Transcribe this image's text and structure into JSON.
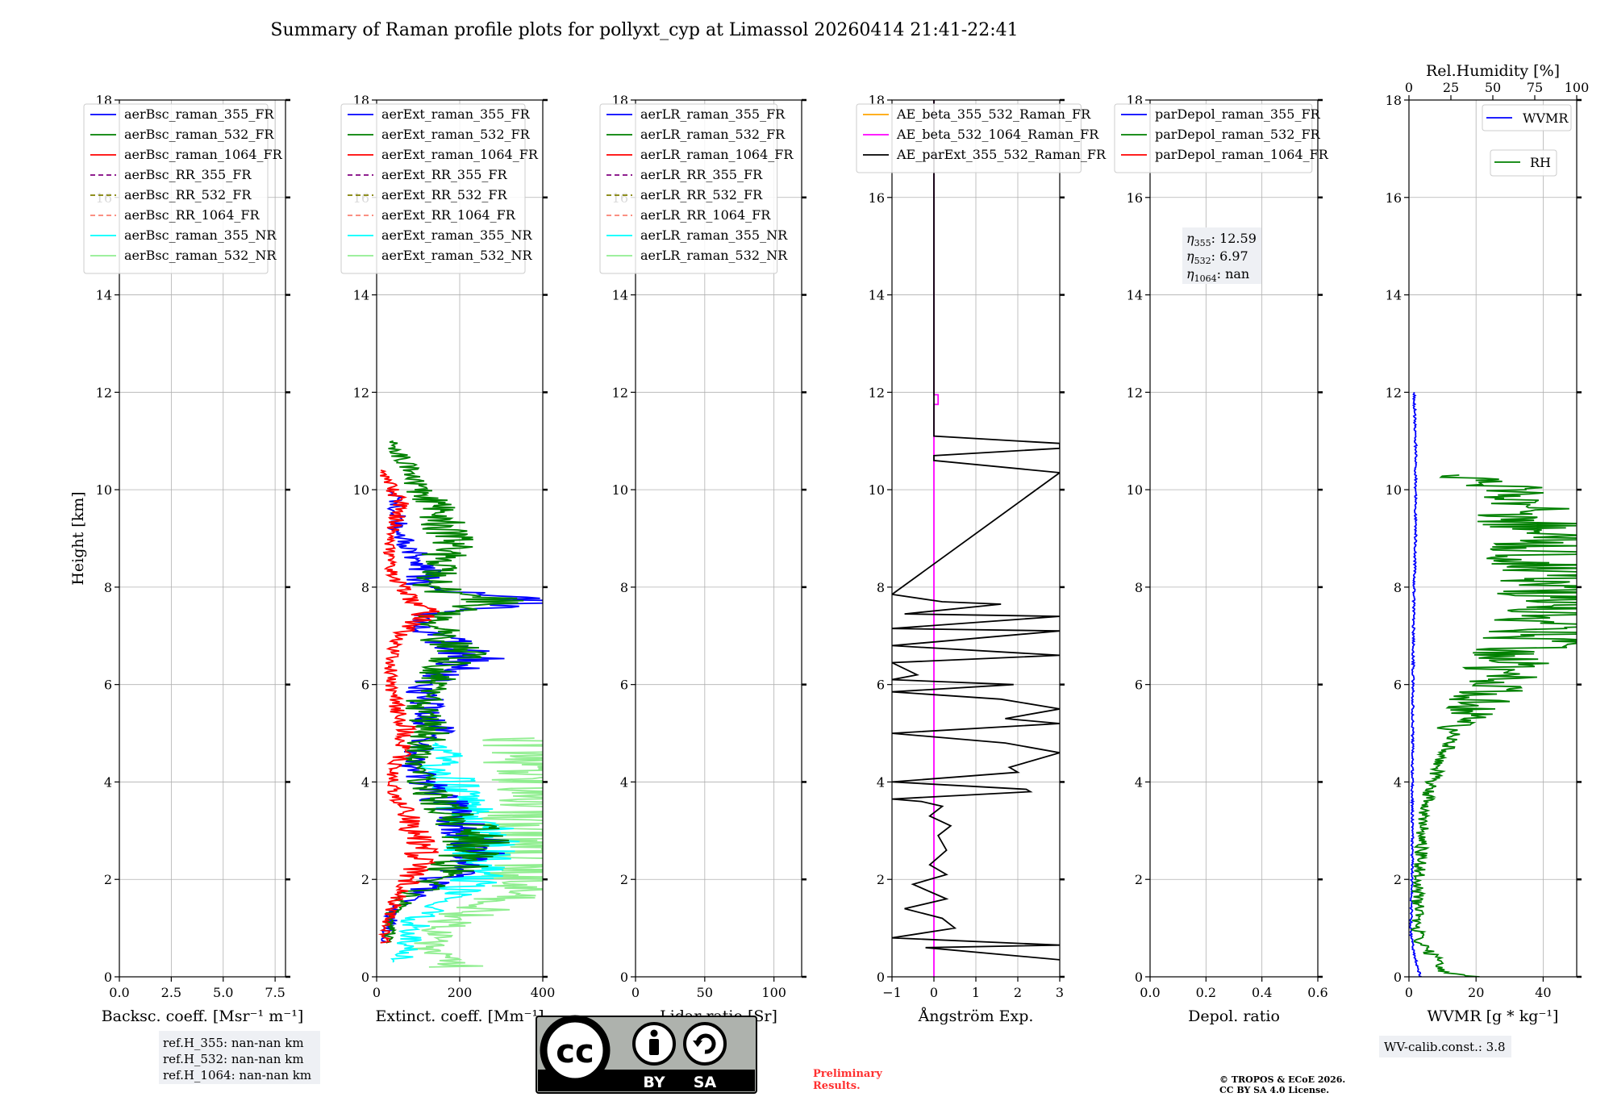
{
  "figure": {
    "title": "Summary of Raman profile plots for pollyxt_cyp at Limassol 20260414 21:41-22:41",
    "preliminary": "Preliminary\nResults.",
    "copyright": "© TROPOS & ECoE 2026.\nCC BY SA 4.0 License.",
    "license_badge": {
      "by": "BY",
      "sa": "SA"
    },
    "ref_heights": [
      "ref.H_355: nan-nan km",
      "ref.H_532: nan-nan km",
      "ref.H_1064: nan-nan km"
    ],
    "wv_calib": "WV-calib.const.: 3.8",
    "colors": {
      "c355": "#0000ff",
      "c532": "#008000",
      "c1064": "#ff0000",
      "purple": "#800080",
      "olive": "#808000",
      "salmon": "#fa8072",
      "cyan": "#00ffff",
      "lightgreen": "#90ee90",
      "orange": "#ffa500",
      "magenta": "#ff00ff",
      "black": "#000000"
    }
  },
  "chart_data": [
    {
      "type": "line",
      "id": "bsc",
      "xlabel": "Backsc. coeff. [Msr⁻¹ m⁻¹]",
      "ylabel": "Height [km]",
      "xlim": [
        0,
        8
      ],
      "ylim": [
        0,
        18
      ],
      "xticks": [
        0,
        2.5,
        5,
        7.5
      ],
      "xticklabels": [
        "0.0",
        "2.5",
        "5.0",
        "7.5"
      ],
      "yticks": [
        0,
        2,
        4,
        6,
        8,
        10,
        12,
        14,
        16,
        18
      ],
      "legend": {
        "placement": "upper-left",
        "entries": [
          {
            "label": "aerBsc_raman_355_FR",
            "color": "#0000ff",
            "dash": false
          },
          {
            "label": "aerBsc_raman_532_FR",
            "color": "#008000",
            "dash": false
          },
          {
            "label": "aerBsc_raman_1064_FR",
            "color": "#ff0000",
            "dash": false
          },
          {
            "label": "aerBsc_RR_355_FR",
            "color": "#800080",
            "dash": true
          },
          {
            "label": "aerBsc_RR_532_FR",
            "color": "#808000",
            "dash": true
          },
          {
            "label": "aerBsc_RR_1064_FR",
            "color": "#fa8072",
            "dash": true
          },
          {
            "label": "aerBsc_raman_355_NR",
            "color": "#00ffff",
            "dash": false
          },
          {
            "label": "aerBsc_raman_532_NR",
            "color": "#90ee90",
            "dash": false
          }
        ]
      },
      "series": []
    },
    {
      "type": "line",
      "id": "ext",
      "xlabel": "Extinct. coeff. [Mm⁻¹]",
      "xlim": [
        0,
        400
      ],
      "ylim": [
        0,
        18
      ],
      "xticks": [
        0,
        200,
        400
      ],
      "xticklabels": [
        "0",
        "200",
        "400"
      ],
      "yticks": [
        0,
        2,
        4,
        6,
        8,
        10,
        12,
        14,
        16,
        18
      ],
      "legend": {
        "placement": "upper-left",
        "entries": [
          {
            "label": "aerExt_raman_355_FR",
            "color": "#0000ff",
            "dash": false
          },
          {
            "label": "aerExt_raman_532_FR",
            "color": "#008000",
            "dash": false
          },
          {
            "label": "aerExt_raman_1064_FR",
            "color": "#ff0000",
            "dash": false
          },
          {
            "label": "aerExt_RR_355_FR",
            "color": "#800080",
            "dash": true
          },
          {
            "label": "aerExt_RR_532_FR",
            "color": "#808000",
            "dash": true
          },
          {
            "label": "aerExt_RR_1064_FR",
            "color": "#fa8072",
            "dash": true
          },
          {
            "label": "aerExt_raman_355_NR",
            "color": "#00ffff",
            "dash": false
          },
          {
            "label": "aerExt_raman_532_NR",
            "color": "#90ee90",
            "dash": false
          }
        ]
      },
      "series": [
        {
          "name": "aerExt_raman_532_NR",
          "color": "#90ee90",
          "noisy": true,
          "y": [
            0.2,
            0.6,
            1.0,
            1.4,
            1.8,
            2.2,
            2.6,
            3.0,
            3.4,
            3.8,
            4.2,
            4.6,
            4.9
          ],
          "x": [
            200,
            120,
            150,
            250,
            330,
            380,
            400,
            380,
            360,
            370,
            380,
            400,
            380
          ]
        },
        {
          "name": "aerExt_raman_355_NR",
          "color": "#00ffff",
          "noisy": true,
          "y": [
            0.3,
            0.8,
            1.2,
            1.6,
            2.0,
            2.4,
            2.8,
            3.2,
            3.6,
            4.0,
            4.4,
            4.8
          ],
          "x": [
            60,
            80,
            100,
            150,
            230,
            250,
            260,
            240,
            200,
            180,
            160,
            140
          ]
        },
        {
          "name": "aerExt_raman_355_FR",
          "color": "#0000ff",
          "noisy": true,
          "y": [
            0.7,
            1.0,
            1.4,
            1.8,
            2.2,
            2.6,
            2.8,
            3.2,
            3.6,
            4.0,
            4.4,
            5.0,
            5.6,
            6.0,
            6.6,
            7.0,
            7.4,
            7.7,
            8.0,
            8.5,
            9.0,
            9.5,
            10.0
          ],
          "x": [
            20,
            30,
            40,
            110,
            200,
            240,
            250,
            200,
            160,
            120,
            80,
            140,
            120,
            110,
            240,
            150,
            100,
            350,
            110,
            120,
            60,
            50,
            40
          ]
        },
        {
          "name": "aerExt_raman_532_FR",
          "color": "#008000",
          "noisy": true,
          "y": [
            0.7,
            1.0,
            1.4,
            1.8,
            2.2,
            2.6,
            2.8,
            3.2,
            3.6,
            4.0,
            4.4,
            5.0,
            5.6,
            6.0,
            6.6,
            7.0,
            7.4,
            7.7,
            8.0,
            8.5,
            9.0,
            9.5,
            10.0,
            11.0
          ],
          "x": [
            25,
            35,
            45,
            110,
            190,
            240,
            245,
            205,
            150,
            110,
            90,
            130,
            110,
            130,
            200,
            150,
            140,
            300,
            130,
            150,
            180,
            160,
            100,
            40
          ]
        },
        {
          "name": "aerExt_raman_1064_FR",
          "color": "#ff0000",
          "noisy": true,
          "y": [
            0.7,
            1.0,
            1.4,
            1.6,
            1.9,
            2.3,
            2.6,
            3.0,
            3.4,
            3.8,
            4.2,
            4.6,
            5.0,
            5.6,
            6.0,
            6.6,
            7.0,
            7.5,
            7.8,
            8.2,
            8.6,
            9.0,
            9.6,
            10.0,
            10.4
          ],
          "x": [
            20,
            20,
            40,
            50,
            70,
            100,
            110,
            90,
            80,
            40,
            40,
            60,
            70,
            50,
            30,
            40,
            50,
            120,
            80,
            40,
            30,
            30,
            60,
            40,
            10
          ]
        }
      ]
    },
    {
      "type": "line",
      "id": "lr",
      "xlabel": "Lidar ratio [Sr]",
      "xlim": [
        0,
        120
      ],
      "ylim": [
        0,
        18
      ],
      "xticks": [
        0,
        50,
        100
      ],
      "xticklabels": [
        "0",
        "50",
        "100"
      ],
      "yticks": [
        0,
        2,
        4,
        6,
        8,
        10,
        12,
        14,
        16,
        18
      ],
      "legend": {
        "placement": "upper-left",
        "entries": [
          {
            "label": "aerLR_raman_355_FR",
            "color": "#0000ff",
            "dash": false
          },
          {
            "label": "aerLR_raman_532_FR",
            "color": "#008000",
            "dash": false
          },
          {
            "label": "aerLR_raman_1064_FR",
            "color": "#ff0000",
            "dash": false
          },
          {
            "label": "aerLR_RR_355_FR",
            "color": "#800080",
            "dash": true
          },
          {
            "label": "aerLR_RR_532_FR",
            "color": "#808000",
            "dash": true
          },
          {
            "label": "aerLR_RR_1064_FR",
            "color": "#fa8072",
            "dash": true
          },
          {
            "label": "aerLR_raman_355_NR",
            "color": "#00ffff",
            "dash": false
          },
          {
            "label": "aerLR_raman_532_NR",
            "color": "#90ee90",
            "dash": false
          }
        ]
      },
      "series": []
    },
    {
      "type": "line",
      "id": "ae",
      "xlabel": "Ångström Exp.",
      "xlim": [
        -1,
        3
      ],
      "ylim": [
        0,
        18
      ],
      "xticks": [
        -1,
        0,
        1,
        2,
        3
      ],
      "xticklabels": [
        "−1",
        "0",
        "1",
        "2",
        "3"
      ],
      "yticks": [
        0,
        2,
        4,
        6,
        8,
        10,
        12,
        14,
        16,
        18
      ],
      "legend": {
        "placement": "upper-left",
        "entries": [
          {
            "label": "AE_beta_355_532_Raman_FR",
            "color": "#ffa500",
            "dash": false
          },
          {
            "label": "AE_beta_532_1064_Raman_FR",
            "color": "#ff00ff",
            "dash": false
          },
          {
            "label": "AE_parExt_355_532_Raman_FR",
            "color": "#000000",
            "dash": false
          }
        ]
      },
      "series": [
        {
          "name": "AE_beta_532_1064_Raman_FR",
          "color": "#ff00ff",
          "noisy": false,
          "y": [
            0,
            11.75,
            11.75,
            11.95,
            11.95,
            18
          ],
          "x": [
            0,
            0,
            0.1,
            0.1,
            0,
            0
          ]
        },
        {
          "name": "AE_parExt_355_532_Raman_FR",
          "color": "#000000",
          "noisy": false,
          "y": [
            0.35,
            0.6,
            0.65,
            0.8,
            1.0,
            1.2,
            1.4,
            1.6,
            1.9,
            2.1,
            2.3,
            2.6,
            2.9,
            3.1,
            3.3,
            3.5,
            3.6,
            3.65,
            3.8,
            3.85,
            4.0,
            4.2,
            4.3,
            4.6,
            4.8,
            5.0,
            5.2,
            5.3,
            5.5,
            5.7,
            5.85,
            6.0,
            6.1,
            6.2,
            6.45,
            6.6,
            6.8,
            7.1,
            7.15,
            7.4,
            7.45,
            7.65,
            7.7,
            7.85,
            10.35,
            10.6,
            10.7,
            10.85,
            10.95,
            11.1,
            18
          ],
          "x": [
            3,
            -0.2,
            3,
            -1,
            0.5,
            0.2,
            -0.7,
            0.3,
            -0.5,
            0.3,
            -0.1,
            0.3,
            0.1,
            0.4,
            -0.1,
            0.2,
            -0.3,
            -1,
            2.3,
            2.2,
            -1,
            2.0,
            1.8,
            3.0,
            1.7,
            -1,
            3.0,
            1.7,
            3.0,
            1.6,
            -1,
            1.9,
            -1,
            -0.4,
            -1,
            3.0,
            -1,
            3.0,
            -1,
            3.0,
            -0.7,
            1.6,
            0.2,
            -1,
            3.0,
            0,
            0,
            3.0,
            3.0,
            0,
            0
          ]
        }
      ]
    },
    {
      "type": "line",
      "id": "depol",
      "xlabel": "Depol. ratio",
      "xlim": [
        0,
        0.6
      ],
      "ylim": [
        0,
        18
      ],
      "xticks": [
        0,
        0.2,
        0.4,
        0.6
      ],
      "xticklabels": [
        "0.0",
        "0.2",
        "0.4",
        "0.6"
      ],
      "yticks": [
        0,
        2,
        4,
        6,
        8,
        10,
        12,
        14,
        16,
        18
      ],
      "legend": {
        "placement": "upper-left",
        "entries": [
          {
            "label": "parDepol_raman_355_FR",
            "color": "#0000ff",
            "dash": false
          },
          {
            "label": "parDepol_raman_532_FR",
            "color": "#008000",
            "dash": false
          },
          {
            "label": "parDepol_raman_1064_FR",
            "color": "#ff0000",
            "dash": false
          }
        ]
      },
      "annotation": [
        {
          "sym": "η",
          "sub": "355",
          "value": ": 12.59"
        },
        {
          "sym": "η",
          "sub": "532",
          "value": ": 6.97"
        },
        {
          "sym": "η",
          "sub": "1064",
          "value": ": nan"
        }
      ],
      "series": []
    },
    {
      "type": "line",
      "id": "wv",
      "xlabel": "WVMR [g * kg⁻¹]",
      "xlim": [
        0,
        50
      ],
      "ylim": [
        0,
        18
      ],
      "xticks": [
        0,
        20,
        40
      ],
      "xticklabels": [
        "0",
        "20",
        "40"
      ],
      "yticks": [
        0,
        2,
        4,
        6,
        8,
        10,
        12,
        14,
        16,
        18
      ],
      "top_axis": {
        "label": "Rel.Humidity [%]",
        "lim": [
          0,
          100
        ],
        "ticks": [
          0,
          25,
          50,
          75,
          100
        ],
        "ticklabels": [
          "0",
          "25",
          "50",
          "75",
          "100"
        ]
      },
      "legend_wvmr": {
        "label": "WVMR",
        "color": "#0000ff"
      },
      "legend_rh": {
        "label": "RH",
        "color": "#008000"
      },
      "series": [
        {
          "name": "WVMR",
          "color": "#0000ff",
          "noisy": true,
          "axis": "bottom",
          "y": [
            0.0,
            0.2,
            0.5,
            0.9,
            1.5,
            2.5,
            4.0,
            6.0,
            8.0,
            9.0,
            10.0,
            11.0,
            12.0
          ],
          "x": [
            3.5,
            2.5,
            1.5,
            0.5,
            0.8,
            1.0,
            1.0,
            1.2,
            1.5,
            2.0,
            2.0,
            2.0,
            1.5
          ]
        },
        {
          "name": "RH",
          "color": "#008000",
          "noisy": true,
          "axis": "top",
          "y": [
            0.0,
            0.1,
            0.3,
            0.5,
            0.7,
            0.9,
            1.2,
            2.0,
            3.0,
            3.5,
            4.0,
            4.5,
            5.0,
            5.5,
            6.0,
            6.5,
            7.0,
            7.5,
            8.0,
            8.5,
            9.0,
            9.5,
            10.0,
            10.3
          ],
          "x": [
            40,
            20,
            18,
            12,
            6,
            5,
            5,
            6,
            8,
            10,
            14,
            20,
            28,
            38,
            50,
            60,
            80,
            95,
            90,
            85,
            80,
            70,
            60,
            30
          ]
        }
      ]
    }
  ]
}
